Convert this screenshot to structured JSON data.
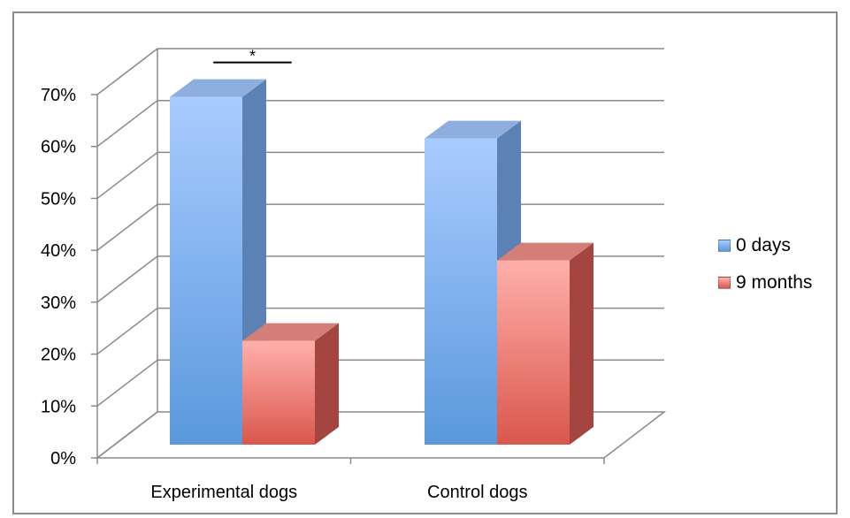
{
  "chart_data": {
    "type": "bar",
    "categories": [
      "Experimental dogs",
      "Control dogs"
    ],
    "series": [
      {
        "name": "0 days",
        "values": [
          67,
          59
        ]
      },
      {
        "name": "9 months",
        "values": [
          20,
          35.5
        ]
      }
    ],
    "ylim": [
      0,
      70
    ],
    "yticks": [
      "0%",
      "10%",
      "20%",
      "30%",
      "40%",
      "50%",
      "60%",
      "70%"
    ],
    "grid": true,
    "legend_position": "right",
    "annotations": [
      {
        "text": "*",
        "category": "Experimental dogs"
      }
    ],
    "colors": {
      "series_0_front_top": "#a9ccff",
      "series_0_front_bottom": "#5a98dc",
      "series_0_side": "#5c82b5",
      "series_0_top": "#8eaedd",
      "series_1_front_top": "#ffb0ab",
      "series_1_front_bottom": "#d9574c",
      "series_1_side": "#a4453f",
      "series_1_top": "#d47e78"
    }
  }
}
